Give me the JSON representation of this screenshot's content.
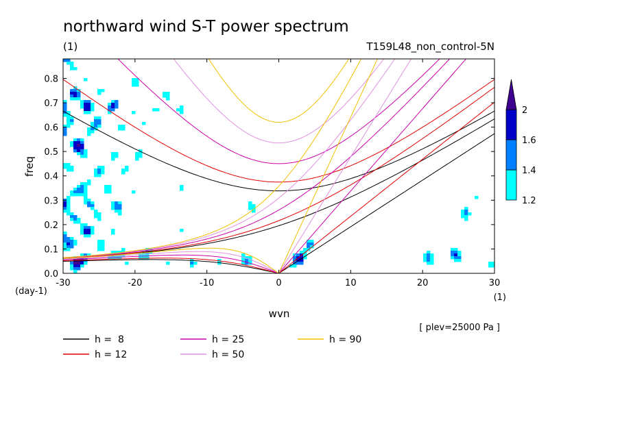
{
  "chart_data": {
    "type": "contour",
    "title": "northward wind S-T power spectrum",
    "subtitle_left": "(1)",
    "subtitle_right": "T159L48_non_control-5N",
    "xlabel": "wvn",
    "ylabel": "freq",
    "x_unit": "(1)",
    "y_unit": "(day-1)",
    "note": "[ plev=25000 Pa ]",
    "xlim": [
      -30,
      30
    ],
    "ylim": [
      0,
      0.88
    ],
    "x_ticks": [
      -30,
      -20,
      -10,
      0,
      10,
      20,
      30
    ],
    "y_ticks": [
      0.0,
      0.1,
      0.2,
      0.3,
      0.4,
      0.5,
      0.6,
      0.7,
      0.8
    ],
    "x_tick_labels": [
      "-30",
      "-20",
      "-10",
      "0",
      "10",
      "20",
      "30"
    ],
    "y_tick_labels": [
      "0.0",
      "0.1",
      "0.2",
      "0.3",
      "0.4",
      "0.5",
      "0.6",
      "0.7",
      "0.8"
    ],
    "colorbar": {
      "levels": [
        1.2,
        1.4,
        1.6,
        2
      ],
      "labels": [
        "1.2",
        "1.4",
        "1.6",
        "2"
      ],
      "colors": [
        "#00ffff",
        "#0080ff",
        "#0000c8",
        "#400090"
      ]
    },
    "dispersion_curves": [
      {
        "label": "h =  8",
        "h": 8,
        "color": "#000000"
      },
      {
        "label": "h = 12",
        "h": 12,
        "color": "#e00000"
      },
      {
        "label": "h = 25",
        "h": 25,
        "color": "#cc00aa"
      },
      {
        "label": "h = 50",
        "h": 50,
        "color": "#e090e0"
      },
      {
        "label": "h = 90",
        "h": 90,
        "color": "#f0c000"
      }
    ]
  }
}
